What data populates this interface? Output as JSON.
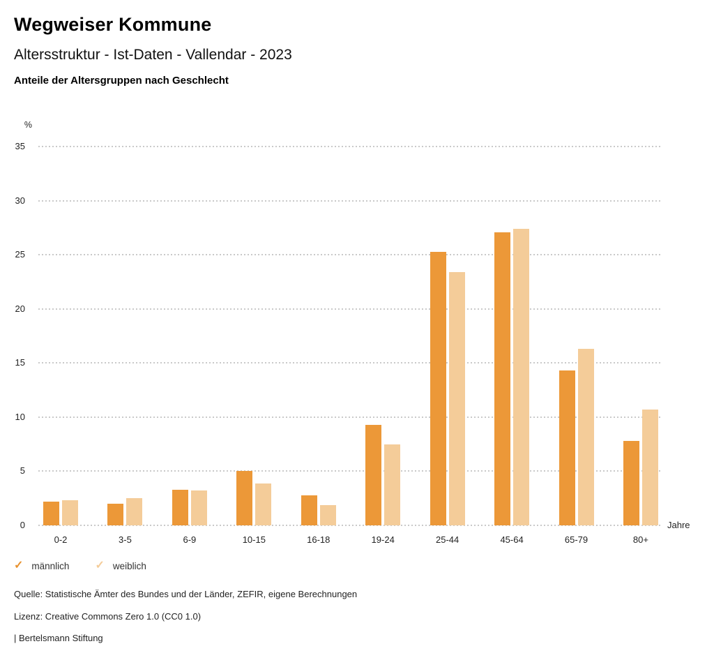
{
  "header": {
    "title": "Wegweiser Kommune",
    "subtitle": "Altersstruktur - Ist-Daten - Vallendar - 2023",
    "description": "Anteile der Altersgruppen nach Geschlecht"
  },
  "chart_data": {
    "type": "bar",
    "title": "Anteile der Altersgruppen nach Geschlecht",
    "categories": [
      "0-2",
      "3-5",
      "6-9",
      "10-15",
      "16-18",
      "19-24",
      "25-44",
      "45-64",
      "65-79",
      "80+"
    ],
    "series": [
      {
        "key": "maennlich",
        "name": "männlich",
        "color": "#EC9838",
        "values": [
          2.2,
          2.0,
          3.3,
          5.0,
          2.8,
          9.3,
          25.3,
          27.1,
          14.3,
          7.8
        ]
      },
      {
        "key": "weiblich",
        "name": "weiblich",
        "color": "#F4CC99",
        "values": [
          2.3,
          2.5,
          3.2,
          3.9,
          1.9,
          7.5,
          23.4,
          27.4,
          16.3,
          10.7
        ]
      }
    ],
    "y_unit": "%",
    "x_unit": "Jahre",
    "ylim": [
      0,
      35
    ],
    "y_ticks": [
      0,
      5,
      10,
      15,
      20,
      25,
      30,
      35
    ],
    "grid": "horizontal-dotted",
    "legend_position": "bottom-left"
  },
  "legend": {
    "check_glyph": "✓",
    "items": [
      {
        "key": "maennlich",
        "label": "männlich",
        "color": "#E8922F"
      },
      {
        "key": "weiblich",
        "label": "weiblich",
        "color": "#F4CC99"
      }
    ]
  },
  "footer": {
    "source": "Quelle: Statistische Ämter des Bundes und der Länder, ZEFIR, eigene Berechnungen",
    "license": "Lizenz: Creative Commons Zero 1.0 (CC0 1.0)",
    "brand": "| Bertelsmann Stiftung"
  }
}
